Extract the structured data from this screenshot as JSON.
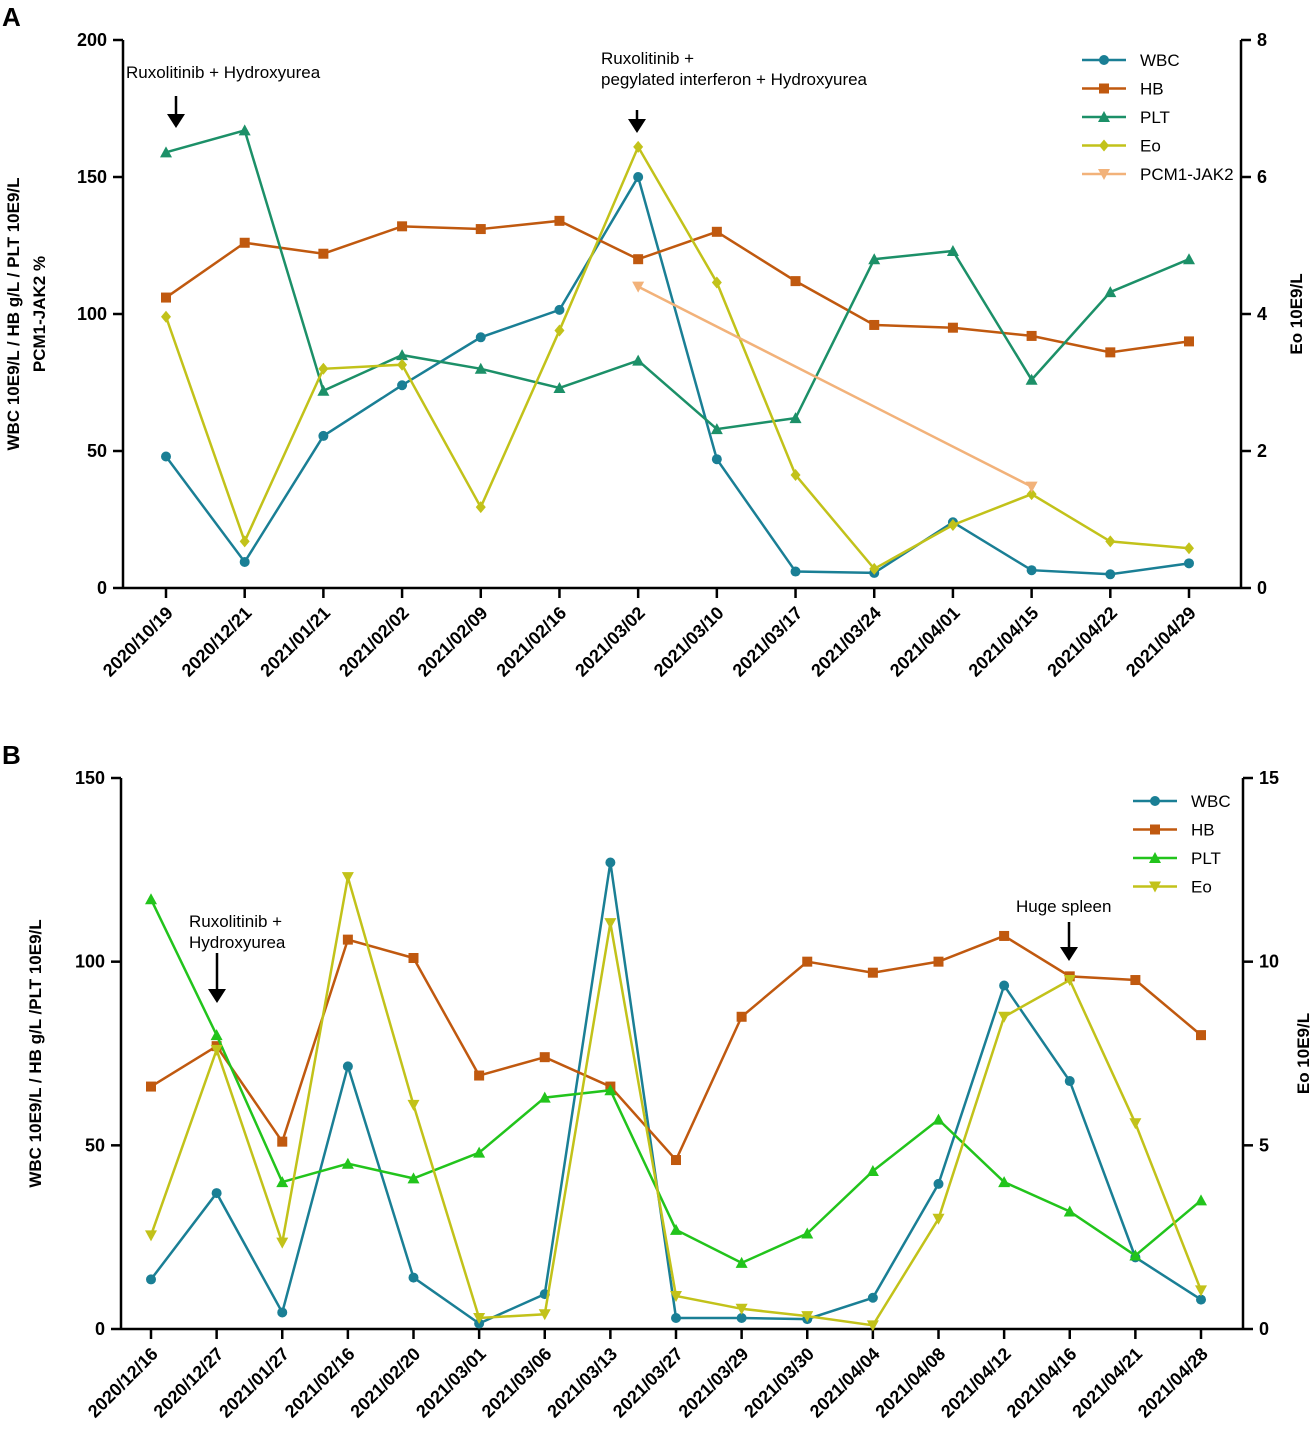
{
  "chart_data": [
    {
      "id": "A",
      "type": "line",
      "panel_label": "A",
      "categories": [
        "2020/10/19",
        "2020/12/21",
        "2021/01/21",
        "2021/02/02",
        "2021/02/09",
        "2021/02/16",
        "2021/03/02",
        "2021/03/10",
        "2021/03/17",
        "2021/03/24",
        "2021/04/01",
        "2021/04/15",
        "2021/04/22",
        "2021/04/29"
      ],
      "ylabel_left": [
        "WBC 10E9/L / HB g/L / PLT 10E9/L",
        "PCM1-JAK2  %"
      ],
      "ylabel_right": "Eo 10E9/L",
      "ylim_left": [
        0,
        200
      ],
      "yticks_left": [
        0,
        50,
        100,
        150,
        200
      ],
      "ylim_right": [
        0,
        8
      ],
      "yticks_right": [
        0,
        2,
        4,
        6,
        8
      ],
      "series": [
        {
          "name": "WBC",
          "axis": "left",
          "marker": "circle",
          "color": "#1a7f95",
          "values": [
            48,
            9.5,
            55.5,
            74,
            91.5,
            101.5,
            150,
            47,
            6,
            5.5,
            24,
            6.5,
            5,
            9
          ]
        },
        {
          "name": "HB",
          "axis": "left",
          "marker": "square",
          "color": "#c0590f",
          "values": [
            106,
            126,
            122,
            132,
            131,
            134,
            120,
            130,
            112,
            96,
            95,
            92,
            86,
            90
          ]
        },
        {
          "name": "PLT",
          "axis": "left",
          "marker": "triangle-up",
          "color": "#1c9068",
          "values": [
            159,
            167,
            72,
            85,
            80,
            73,
            83,
            58,
            62,
            120,
            123,
            76,
            108,
            120
          ]
        },
        {
          "name": "Eo",
          "axis": "right",
          "marker": "diamond",
          "color": "#c2c21a",
          "values": [
            3.96,
            0.68,
            3.2,
            3.26,
            1.18,
            3.76,
            6.44,
            4.46,
            1.65,
            0.28,
            0.92,
            1.37,
            0.68,
            0.58
          ]
        },
        {
          "name": "PCM1-JAK2",
          "axis": "left",
          "marker": "triangle-down",
          "color": "#f2b27a",
          "values": [
            null,
            null,
            null,
            null,
            null,
            null,
            110,
            null,
            null,
            null,
            null,
            37,
            null,
            null
          ]
        }
      ],
      "annotations": [
        {
          "text": "Ruxolitinib + Hydroxyurea"
        },
        {
          "text": "Ruxolitinib +\npegylated interferon + Hydroxyurea"
        }
      ]
    },
    {
      "id": "B",
      "type": "line",
      "panel_label": "B",
      "categories": [
        "2020/12/16",
        "2020/12/27",
        "2021/01/27",
        "2021/02/16",
        "2021/02/20",
        "2021/03/01",
        "2021/03/06",
        "2021/03/13",
        "2021/03/27",
        "2021/03/29",
        "2021/03/30",
        "2021/04/04",
        "2021/04/08",
        "2021/04/12",
        "2021/04/16",
        "2021/04/21",
        "2021/04/28"
      ],
      "ylabel_left": [
        "WBC 10E9/L / HB g/L /PLT 10E9/L"
      ],
      "ylabel_right": "Eo 10E9/L",
      "ylim_left": [
        0,
        150
      ],
      "yticks_left": [
        0,
        50,
        100,
        150
      ],
      "ylim_right": [
        0,
        15
      ],
      "yticks_right": [
        0,
        5,
        10,
        15
      ],
      "series": [
        {
          "name": "WBC",
          "axis": "left",
          "marker": "circle",
          "color": "#1a7f95",
          "values": [
            13.5,
            37,
            4.5,
            71.5,
            14,
            1.5,
            9.5,
            127,
            3,
            3,
            2.7,
            8.5,
            39.5,
            93.5,
            67.5,
            19.5,
            8
          ]
        },
        {
          "name": "HB",
          "axis": "left",
          "marker": "square",
          "color": "#c0590f",
          "values": [
            66,
            77,
            51,
            106,
            101,
            69,
            74,
            66,
            46,
            85,
            100,
            97,
            100,
            107,
            96,
            95,
            80
          ]
        },
        {
          "name": "PLT",
          "axis": "left",
          "marker": "triangle-up",
          "color": "#22c41c",
          "values": [
            117,
            80,
            40,
            45,
            41,
            48,
            63,
            65,
            27,
            18,
            26,
            43,
            57,
            40,
            32,
            20,
            35
          ]
        },
        {
          "name": "Eo",
          "axis": "right",
          "marker": "triangle-down",
          "color": "#c2c21a",
          "values": [
            2.55,
            7.6,
            2.35,
            12.3,
            6.1,
            0.3,
            0.4,
            11.05,
            0.9,
            0.55,
            0.35,
            0.1,
            3.0,
            8.5,
            9.5,
            5.6,
            1.05
          ]
        }
      ],
      "annotations": [
        {
          "text": "Ruxolitinib +\nHydroxyurea"
        },
        {
          "text": "Huge spleen"
        }
      ]
    }
  ]
}
